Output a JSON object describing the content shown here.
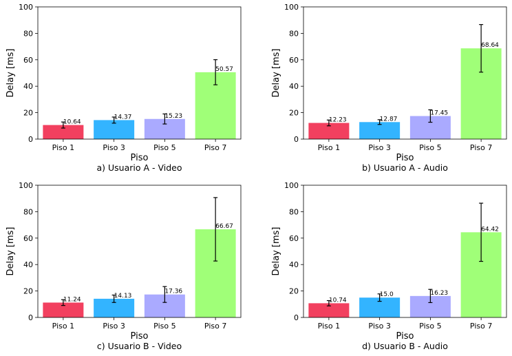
{
  "chart_data": [
    {
      "type": "bar",
      "caption": "a) Usuario A - Video",
      "xlabel": "Piso",
      "ylabel": "Delay [ms]",
      "categories": [
        "Piso 1",
        "Piso 3",
        "Piso 5",
        "Piso 7"
      ],
      "values": [
        10.64,
        14.37,
        15.23,
        50.57
      ],
      "value_labels": [
        "10.64",
        "14.37",
        "15.23",
        "50.57"
      ],
      "error": [
        2.3,
        2.3,
        3.8,
        9.5
      ],
      "ylim": [
        0,
        100
      ],
      "yticks": [
        "0",
        "20",
        "40",
        "60",
        "80",
        "100"
      ],
      "colors": [
        "#f2405f",
        "#33b4ff",
        "#aaaaff",
        "#a0ff78"
      ]
    },
    {
      "type": "bar",
      "caption": "b) Usuario A - Audio",
      "xlabel": "Piso",
      "ylabel": "Delay [ms]",
      "categories": [
        "Piso 1",
        "Piso 3",
        "Piso 5",
        "Piso 7"
      ],
      "values": [
        12.23,
        12.87,
        17.45,
        68.64
      ],
      "value_labels": [
        "12.23",
        "12.87",
        "17.45",
        "68.64"
      ],
      "error": [
        2.2,
        1.8,
        4.7,
        18.0
      ],
      "ylim": [
        0,
        100
      ],
      "yticks": [
        "0",
        "20",
        "40",
        "60",
        "80",
        "100"
      ],
      "colors": [
        "#f2405f",
        "#33b4ff",
        "#aaaaff",
        "#a0ff78"
      ]
    },
    {
      "type": "bar",
      "caption": "c) Usuario B - Video",
      "xlabel": "Piso",
      "ylabel": "Delay [ms]",
      "categories": [
        "Piso 1",
        "Piso 3",
        "Piso 5",
        "Piso 7"
      ],
      "values": [
        11.24,
        14.13,
        17.36,
        66.67
      ],
      "value_labels": [
        "11.24",
        "14.13",
        "17.36",
        "66.67"
      ],
      "error": [
        2.2,
        2.8,
        6.0,
        24.0
      ],
      "ylim": [
        0,
        100
      ],
      "yticks": [
        "0",
        "20",
        "40",
        "60",
        "80",
        "100"
      ],
      "colors": [
        "#f2405f",
        "#33b4ff",
        "#aaaaff",
        "#a0ff78"
      ]
    },
    {
      "type": "bar",
      "caption": "d) Usuario B - Audio",
      "xlabel": "Piso",
      "ylabel": "Delay [ms]",
      "categories": [
        "Piso 1",
        "Piso 3",
        "Piso 5",
        "Piso 7"
      ],
      "values": [
        10.74,
        15.0,
        16.23,
        64.42
      ],
      "value_labels": [
        "10.74",
        "15.0",
        "16.23",
        "64.42"
      ],
      "error": [
        2.0,
        2.8,
        5.0,
        22.0
      ],
      "ylim": [
        0,
        100
      ],
      "yticks": [
        "0",
        "20",
        "40",
        "60",
        "80",
        "100"
      ],
      "colors": [
        "#f2405f",
        "#33b4ff",
        "#aaaaff",
        "#a0ff78"
      ]
    }
  ]
}
